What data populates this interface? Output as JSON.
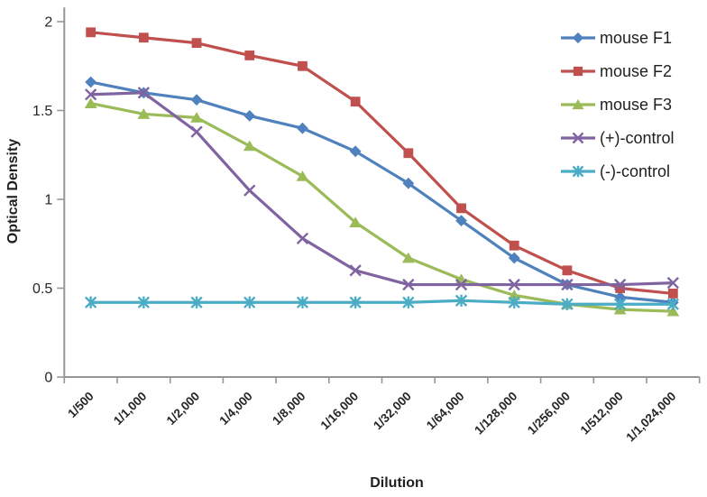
{
  "chart_data": {
    "type": "line",
    "title": "",
    "xlabel": "Dilution",
    "ylabel": "Optical Density",
    "categories": [
      "1/500",
      "1/1,000",
      "1/2,000",
      "1/4,000",
      "1/8,000",
      "1/16,000",
      "1/32,000",
      "1/64,000",
      "1/128,000",
      "1/256,000",
      "1/512,000",
      "1/1,024,000"
    ],
    "series": [
      {
        "name": "mouse F1",
        "marker": "diamond",
        "color": "#4F81BD",
        "values": [
          1.66,
          1.6,
          1.56,
          1.47,
          1.4,
          1.27,
          1.09,
          0.88,
          0.67,
          0.52,
          0.45,
          0.42
        ]
      },
      {
        "name": "mouse F2",
        "marker": "square",
        "color": "#C0504D",
        "values": [
          1.94,
          1.91,
          1.88,
          1.81,
          1.75,
          1.55,
          1.26,
          0.95,
          0.74,
          0.6,
          0.5,
          0.47
        ]
      },
      {
        "name": "mouse F3",
        "marker": "triangle",
        "color": "#9BBB59",
        "values": [
          1.54,
          1.48,
          1.46,
          1.3,
          1.13,
          0.87,
          0.67,
          0.55,
          0.46,
          0.41,
          0.38,
          0.37
        ]
      },
      {
        "name": "(+)-control",
        "marker": "x",
        "color": "#8064A2",
        "values": [
          1.59,
          1.6,
          1.38,
          1.05,
          0.78,
          0.6,
          0.52,
          0.52,
          0.52,
          0.52,
          0.52,
          0.53
        ]
      },
      {
        "name": "(-)-control",
        "marker": "asterisk",
        "color": "#4BACC6",
        "values": [
          0.42,
          0.42,
          0.42,
          0.42,
          0.42,
          0.42,
          0.42,
          0.43,
          0.42,
          0.41,
          0.41,
          0.41
        ]
      }
    ],
    "yticks": [
      0,
      0.5,
      1,
      1.5,
      2
    ],
    "ylim": [
      0,
      2.08
    ],
    "grid": false,
    "legend_position": "right"
  },
  "style": {
    "axis_color": "#969696",
    "tick_text_color": "#262626",
    "label_text_color": "#1f1f1f",
    "background": "#ffffff"
  }
}
